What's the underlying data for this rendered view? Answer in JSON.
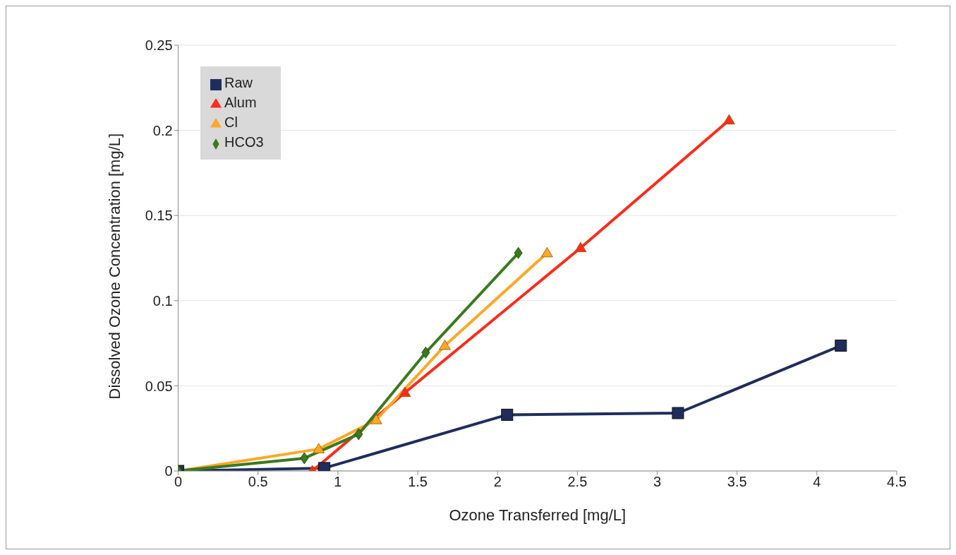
{
  "chart_data": {
    "type": "line",
    "xlabel": "Ozone Transferred [mg/L]",
    "ylabel": "Dissolved Ozone Concentration [mg/L]",
    "xlim": [
      0,
      4.5
    ],
    "xticks": [
      0,
      0.5,
      1,
      1.5,
      2,
      2.5,
      3,
      3.5,
      4,
      4.5
    ],
    "ylim": [
      0,
      0.25
    ],
    "yticks": [
      0,
      0.05,
      0.1,
      0.15,
      0.2,
      0.25
    ],
    "grid": "y",
    "legend": "top left",
    "series": [
      {
        "name": "Raw",
        "color": "#1f2d5c",
        "marker": "square",
        "x": [
          0,
          0.915,
          2.06,
          3.13,
          4.15
        ],
        "values": [
          0,
          0.0017,
          0.033,
          0.034,
          0.0736
        ]
      },
      {
        "name": "Alum",
        "color": "#ff2a1a",
        "marker": "triangle",
        "x": [
          0.84,
          1.42,
          2.52,
          3.45
        ],
        "values": [
          0,
          0.046,
          0.131,
          0.206
        ]
      },
      {
        "name": "Cl",
        "color": "#ffa726",
        "marker": "triangle",
        "x": [
          0,
          0.88,
          1.24,
          1.67,
          2.31
        ],
        "values": [
          0,
          0.0129,
          0.03,
          0.0736,
          0.128
        ]
      },
      {
        "name": "HCO3",
        "color": "#3a7a1e",
        "marker": "diamond",
        "x": [
          0,
          0.79,
          1.13,
          1.55,
          2.13
        ],
        "values": [
          0,
          0.0075,
          0.0216,
          0.0695,
          0.128
        ]
      }
    ]
  }
}
